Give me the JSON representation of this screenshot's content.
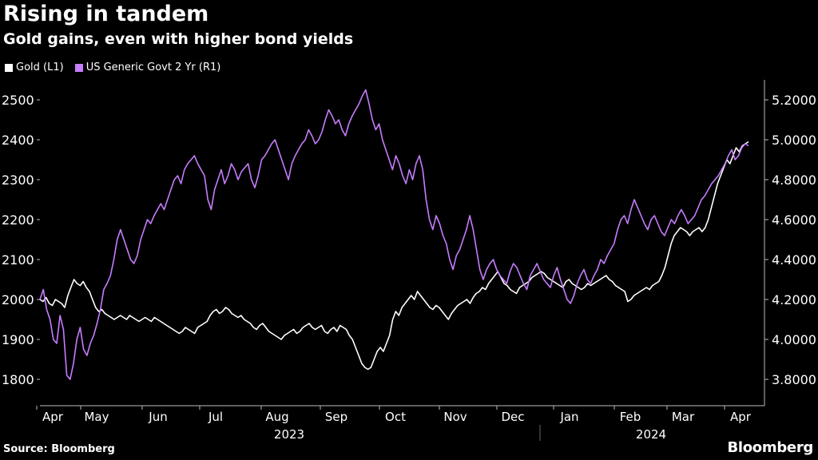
{
  "title": "Rising in tandem",
  "subtitle": "Gold gains, even with higher bond yields",
  "source": "Source: Bloomberg",
  "logo": "Bloomberg",
  "colors": {
    "gold": "#ffffff",
    "yield": "#c77dff",
    "axis": "#bbbbbb",
    "grid": "#444444"
  },
  "chart_data": {
    "type": "line",
    "legend": [
      {
        "name": "Gold (L1)",
        "color": "#ffffff"
      },
      {
        "name": "US Generic Govt 2 Yr (R1)",
        "color": "#c77dff"
      }
    ],
    "left_axis": {
      "ticks": [
        1800,
        1900,
        2000,
        2100,
        2200,
        2300,
        2400,
        2500
      ],
      "range": [
        1750,
        2550
      ]
    },
    "right_axis": {
      "ticks": [
        "3.8000",
        "4.0000",
        "4.2000",
        "4.4000",
        "4.6000",
        "4.8000",
        "5.0000",
        "5.2000"
      ],
      "range": [
        3.7,
        5.3
      ]
    },
    "months": [
      "Apr",
      "May",
      "Jun",
      "Jul",
      "Aug",
      "Sep",
      "Oct",
      "Nov",
      "Dec",
      "Jan",
      "Feb",
      "Mar",
      "Apr"
    ],
    "years": [
      "2023",
      "2024"
    ],
    "series": [
      {
        "name": "Gold (L1)",
        "axis": "left",
        "color": "#ffffff",
        "values": [
          2000,
          1995,
          2005,
          1990,
          1985,
          2000,
          1995,
          1990,
          1980,
          2010,
          2030,
          2050,
          2040,
          2035,
          2045,
          2030,
          2020,
          2000,
          1980,
          1970,
          1975,
          1965,
          1960,
          1955,
          1950,
          1955,
          1960,
          1955,
          1950,
          1960,
          1955,
          1950,
          1945,
          1950,
          1955,
          1950,
          1945,
          1955,
          1950,
          1945,
          1940,
          1935,
          1930,
          1925,
          1920,
          1915,
          1920,
          1930,
          1925,
          1920,
          1915,
          1930,
          1935,
          1940,
          1945,
          1960,
          1970,
          1975,
          1965,
          1970,
          1980,
          1975,
          1965,
          1960,
          1955,
          1960,
          1950,
          1945,
          1940,
          1930,
          1925,
          1935,
          1940,
          1930,
          1920,
          1915,
          1910,
          1905,
          1900,
          1910,
          1915,
          1920,
          1925,
          1915,
          1920,
          1930,
          1935,
          1940,
          1930,
          1925,
          1930,
          1935,
          1920,
          1915,
          1925,
          1930,
          1920,
          1935,
          1930,
          1925,
          1910,
          1900,
          1880,
          1860,
          1840,
          1830,
          1825,
          1830,
          1850,
          1870,
          1880,
          1870,
          1890,
          1910,
          1950,
          1970,
          1960,
          1980,
          1990,
          2000,
          2010,
          2000,
          2020,
          2010,
          2000,
          1990,
          1980,
          1975,
          1985,
          1980,
          1970,
          1960,
          1950,
          1965,
          1975,
          1985,
          1990,
          1995,
          2000,
          1990,
          2005,
          2015,
          2020,
          2030,
          2025,
          2040,
          2050,
          2060,
          2070,
          2055,
          2040,
          2035,
          2025,
          2020,
          2015,
          2030,
          2035,
          2040,
          2045,
          2055,
          2060,
          2065,
          2070,
          2065,
          2055,
          2050,
          2045,
          2040,
          2035,
          2030,
          2045,
          2050,
          2040,
          2035,
          2030,
          2025,
          2030,
          2040,
          2035,
          2040,
          2045,
          2050,
          2055,
          2060,
          2050,
          2045,
          2035,
          2030,
          2025,
          2020,
          1995,
          2000,
          2010,
          2015,
          2020,
          2025,
          2030,
          2025,
          2035,
          2040,
          2045,
          2060,
          2080,
          2110,
          2140,
          2160,
          2170,
          2180,
          2175,
          2170,
          2160,
          2170,
          2175,
          2180,
          2170,
          2180,
          2200,
          2230,
          2260,
          2290,
          2310,
          2330,
          2350,
          2340,
          2360,
          2380,
          2370,
          2385,
          2390,
          2395
        ]
      },
      {
        "name": "US Generic Govt 2 Yr (R1)",
        "axis": "right",
        "color": "#c77dff",
        "values": [
          4.2,
          4.25,
          4.15,
          4.1,
          4.0,
          3.98,
          4.12,
          4.05,
          3.82,
          3.8,
          3.88,
          4.0,
          4.06,
          3.95,
          3.92,
          3.98,
          4.02,
          4.08,
          4.15,
          4.25,
          4.28,
          4.32,
          4.4,
          4.5,
          4.55,
          4.5,
          4.45,
          4.4,
          4.38,
          4.42,
          4.5,
          4.55,
          4.6,
          4.58,
          4.62,
          4.65,
          4.68,
          4.65,
          4.7,
          4.75,
          4.8,
          4.82,
          4.78,
          4.85,
          4.88,
          4.9,
          4.92,
          4.88,
          4.85,
          4.82,
          4.7,
          4.65,
          4.75,
          4.8,
          4.85,
          4.78,
          4.82,
          4.88,
          4.85,
          4.8,
          4.84,
          4.86,
          4.88,
          4.8,
          4.76,
          4.82,
          4.9,
          4.92,
          4.95,
          4.98,
          5.0,
          4.95,
          4.9,
          4.85,
          4.8,
          4.88,
          4.92,
          4.95,
          4.98,
          5.0,
          5.05,
          5.02,
          4.98,
          5.0,
          5.04,
          5.1,
          5.15,
          5.12,
          5.08,
          5.1,
          5.05,
          5.02,
          5.08,
          5.12,
          5.15,
          5.18,
          5.22,
          5.25,
          5.18,
          5.1,
          5.05,
          5.08,
          5.0,
          4.95,
          4.9,
          4.85,
          4.92,
          4.88,
          4.82,
          4.78,
          4.85,
          4.8,
          4.88,
          4.92,
          4.85,
          4.7,
          4.6,
          4.55,
          4.62,
          4.58,
          4.52,
          4.48,
          4.4,
          4.35,
          4.42,
          4.45,
          4.5,
          4.55,
          4.62,
          4.55,
          4.45,
          4.35,
          4.3,
          4.35,
          4.38,
          4.4,
          4.35,
          4.32,
          4.3,
          4.28,
          4.34,
          4.38,
          4.36,
          4.32,
          4.28,
          4.25,
          4.32,
          4.35,
          4.38,
          4.34,
          4.3,
          4.28,
          4.26,
          4.32,
          4.36,
          4.3,
          4.25,
          4.2,
          4.18,
          4.22,
          4.28,
          4.32,
          4.35,
          4.3,
          4.28,
          4.32,
          4.35,
          4.4,
          4.38,
          4.42,
          4.45,
          4.48,
          4.55,
          4.6,
          4.62,
          4.58,
          4.65,
          4.7,
          4.66,
          4.62,
          4.58,
          4.55,
          4.6,
          4.62,
          4.58,
          4.54,
          4.52,
          4.56,
          4.6,
          4.58,
          4.62,
          4.65,
          4.62,
          4.58,
          4.6,
          4.62,
          4.66,
          4.7,
          4.72,
          4.75,
          4.78,
          4.8,
          4.82,
          4.85,
          4.88,
          4.92,
          4.95,
          4.9,
          4.92,
          4.96,
          4.98,
          4.97
        ]
      }
    ]
  }
}
